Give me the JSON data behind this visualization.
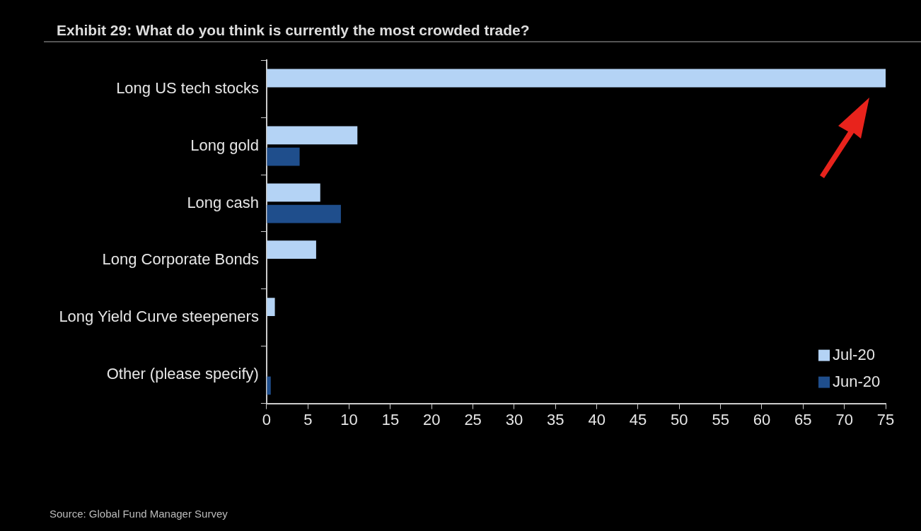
{
  "chart_data": {
    "type": "bar",
    "orientation": "horizontal",
    "title": "Exhibit 29: What do you think is currently the most crowded trade?",
    "categories": [
      "Long US tech stocks",
      "Long gold",
      "Long cash",
      "Long Corporate Bonds",
      "Long Yield Curve steepeners",
      "Other (please specify)"
    ],
    "series": [
      {
        "name": "Jul-20",
        "color": "#b4d3f5",
        "values": [
          75,
          11,
          6.5,
          6,
          1,
          0
        ]
      },
      {
        "name": "Jun-20",
        "color": "#1f4e8c",
        "values": [
          0,
          4,
          9,
          0,
          0,
          0.5
        ]
      }
    ],
    "xlim": [
      0,
      75
    ],
    "xticks": [
      0,
      5,
      10,
      15,
      20,
      25,
      30,
      35,
      40,
      45,
      50,
      55,
      60,
      65,
      70,
      75
    ],
    "legend": "bottom right",
    "annotations": [
      "Source: Global Fund Manager Survey"
    ]
  }
}
